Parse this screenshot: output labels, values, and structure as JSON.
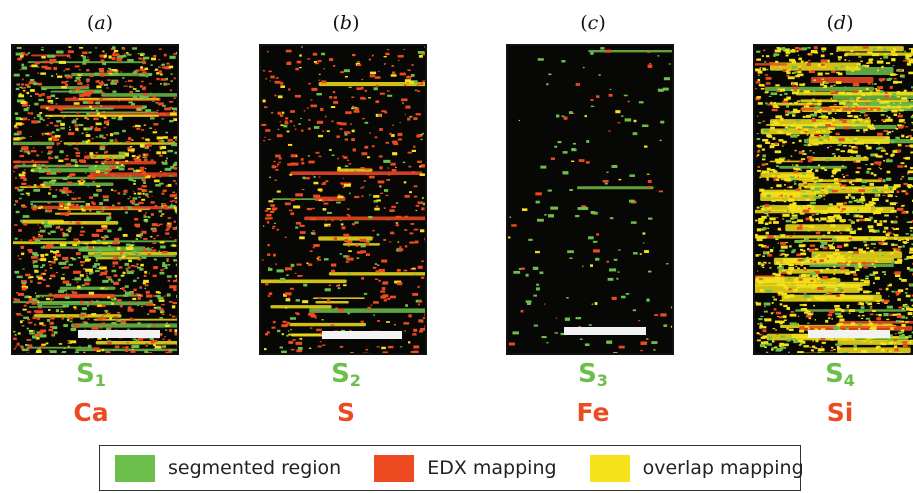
{
  "colors": {
    "segmented": "#6cbf4a",
    "edx": "#ee4a22",
    "overlap": "#f5e21a",
    "background": "#070705"
  },
  "panels": [
    {
      "label_prefix": "(",
      "label_letter": "a",
      "label_suffix": ")",
      "segment": "S",
      "segment_index": "1",
      "element": "Ca"
    },
    {
      "label_prefix": "(",
      "label_letter": "b",
      "label_suffix": ")",
      "segment": "S",
      "segment_index": "2",
      "element": "S"
    },
    {
      "label_prefix": "(",
      "label_letter": "c",
      "label_suffix": ")",
      "segment": "S",
      "segment_index": "3",
      "element": "Fe"
    },
    {
      "label_prefix": "(",
      "label_letter": "d",
      "label_suffix": ")",
      "segment": "S",
      "segment_index": "4",
      "element": "Si"
    }
  ],
  "legend": [
    {
      "swatch_color": "#6cbf4a",
      "label": "segmented region",
      "swatch_icon": "green-swatch"
    },
    {
      "swatch_color": "#ee4a22",
      "label": "EDX mapping",
      "swatch_icon": "red-swatch"
    },
    {
      "swatch_color": "#f5e21a",
      "label": "overlap mapping",
      "swatch_icon": "yellow-swatch"
    }
  ]
}
